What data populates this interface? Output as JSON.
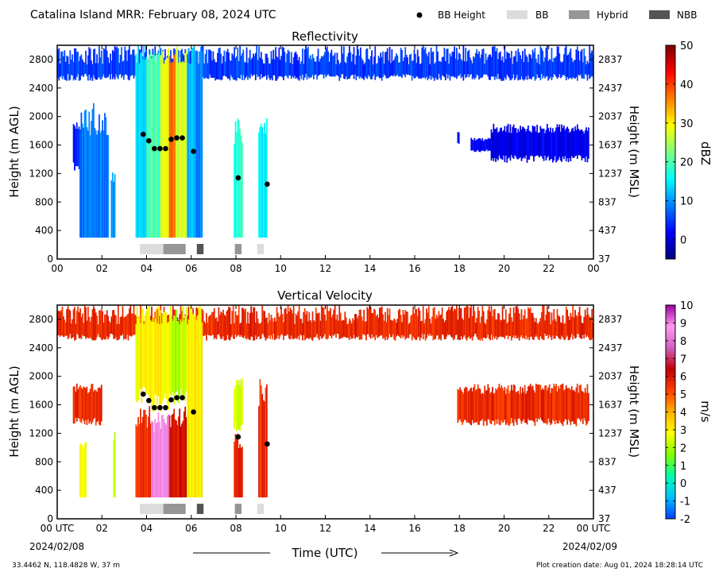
{
  "header": {
    "title": "Catalina Island MRR:  February 08, 2024 UTC",
    "legend": [
      {
        "label": "BB Height",
        "kind": "dot",
        "color": "#000000"
      },
      {
        "label": "BB",
        "kind": "swatch",
        "color": "#dcdcdc"
      },
      {
        "label": "Hybrid",
        "kind": "swatch",
        "color": "#969696"
      },
      {
        "label": "NBB",
        "kind": "swatch",
        "color": "#555555"
      }
    ]
  },
  "footer": {
    "location": "33.4462 N, 118.4828 W, 37 m",
    "creation": "Plot creation date: Aug 01, 2024 18:28:14 UTC",
    "xlabel": "Time (UTC)",
    "start_label": "00 UTC",
    "start_date": "2024/02/08",
    "end_label": "00 UTC",
    "end_date": "2024/02/09"
  },
  "chart_data": [
    {
      "type": "heatmap",
      "title": "Reflectivity",
      "ylabel": "Height (m AGL)",
      "ylabel_right": "Height (m MSL)",
      "xlim": [
        0,
        24
      ],
      "ylim": [
        0,
        3000
      ],
      "xticks": [
        "00",
        "02",
        "04",
        "06",
        "08",
        "10",
        "12",
        "14",
        "16",
        "18",
        "20",
        "22",
        "00"
      ],
      "yticks": [
        0,
        400,
        800,
        1200,
        1600,
        2000,
        2400,
        2800
      ],
      "yticks_right": [
        "37",
        "437",
        "837",
        "1237",
        "1637",
        "2037",
        "2437",
        "2837"
      ],
      "colorbar": {
        "label": "dBZ",
        "min": -5,
        "max": 50,
        "ticks": [
          0,
          10,
          20,
          30,
          40,
          50
        ],
        "stops": [
          "#00007f",
          "#0000ff",
          "#007fff",
          "#00ffff",
          "#7fff7f",
          "#ffff00",
          "#ff7f00",
          "#ff0000",
          "#7f0000"
        ]
      },
      "bb_height": [
        [
          3.85,
          1750
        ],
        [
          4.1,
          1660
        ],
        [
          4.35,
          1550
        ],
        [
          4.6,
          1550
        ],
        [
          4.85,
          1550
        ],
        [
          5.1,
          1680
        ],
        [
          5.35,
          1700
        ],
        [
          5.6,
          1700
        ],
        [
          6.1,
          1510
        ],
        [
          8.1,
          1140
        ],
        [
          9.4,
          1050
        ]
      ],
      "bb_class": [
        {
          "start": 3.7,
          "end": 4.75,
          "class": "BB"
        },
        {
          "start": 4.75,
          "end": 5.75,
          "class": "Hybrid"
        },
        {
          "start": 6.25,
          "end": 6.55,
          "class": "NBB"
        },
        {
          "start": 7.95,
          "end": 8.25,
          "class": "Hybrid"
        },
        {
          "start": 8.95,
          "end": 9.25,
          "class": "BB"
        }
      ],
      "regions": [
        {
          "t0": 0,
          "t1": 24,
          "h0": 2500,
          "h1": 3000,
          "v": 5
        },
        {
          "t0": 0.7,
          "t1": 1.1,
          "h0": 1200,
          "h1": 2000,
          "v": 3
        },
        {
          "t0": 1.0,
          "t1": 2.3,
          "h0": 300,
          "h1": 2200,
          "v": 8
        },
        {
          "t0": 2.4,
          "t1": 2.6,
          "h0": 300,
          "h1": 1300,
          "v": 10
        },
        {
          "t0": 3.5,
          "t1": 4.0,
          "h0": 300,
          "h1": 3000,
          "v": 14
        },
        {
          "t0": 4.0,
          "t1": 4.6,
          "h0": 300,
          "h1": 3000,
          "v": 20
        },
        {
          "t0": 4.6,
          "t1": 5.0,
          "h0": 300,
          "h1": 3000,
          "v": 28
        },
        {
          "t0": 5.0,
          "t1": 5.3,
          "h0": 300,
          "h1": 3000,
          "v": 38
        },
        {
          "t0": 5.3,
          "t1": 5.8,
          "h0": 300,
          "h1": 3000,
          "v": 27
        },
        {
          "t0": 5.8,
          "t1": 6.2,
          "h0": 300,
          "h1": 3000,
          "v": 12
        },
        {
          "t0": 6.2,
          "t1": 6.5,
          "h0": 300,
          "h1": 3000,
          "v": 9
        },
        {
          "t0": 7.9,
          "t1": 8.3,
          "h0": 300,
          "h1": 2000,
          "v": 18
        },
        {
          "t0": 9.0,
          "t1": 9.4,
          "h0": 300,
          "h1": 2000,
          "v": 15
        },
        {
          "t0": 17.9,
          "t1": 18.0,
          "h0": 1600,
          "h1": 1800,
          "v": 3
        },
        {
          "t0": 18.5,
          "t1": 19.4,
          "h0": 1500,
          "h1": 1700,
          "v": 1
        },
        {
          "t0": 19.4,
          "t1": 23.8,
          "h0": 1350,
          "h1": 1900,
          "v": 1
        }
      ]
    },
    {
      "type": "heatmap",
      "title": "Vertical Velocity",
      "ylabel": "Height (m AGL)",
      "ylabel_right": "Height (m MSL)",
      "xlim": [
        0,
        24
      ],
      "ylim": [
        0,
        3000
      ],
      "xticks": [
        "00 UTC",
        "02",
        "04",
        "06",
        "08",
        "10",
        "12",
        "14",
        "16",
        "18",
        "20",
        "22",
        "00 UTC"
      ],
      "yticks": [
        0,
        400,
        800,
        1200,
        1600,
        2000,
        2400,
        2800
      ],
      "yticks_right": [
        "37",
        "437",
        "837",
        "1237",
        "1637",
        "2037",
        "2437",
        "2837"
      ],
      "colorbar": {
        "label": "m/s",
        "min": -2,
        "max": 10,
        "ticks": [
          -2,
          -1,
          0,
          1,
          2,
          3,
          4,
          5,
          6,
          7,
          8,
          9,
          10
        ],
        "stops": [
          "#0040ff",
          "#00c0ff",
          "#00ffaa",
          "#7fff00",
          "#ffff00",
          "#ffb000",
          "#ff4000",
          "#c00000",
          "#d060c0",
          "#ff99ee",
          "#a000a0"
        ]
      },
      "bb_height": [
        [
          3.85,
          1750
        ],
        [
          4.1,
          1660
        ],
        [
          4.35,
          1560
        ],
        [
          4.6,
          1560
        ],
        [
          4.85,
          1560
        ],
        [
          5.1,
          1670
        ],
        [
          5.35,
          1700
        ],
        [
          5.6,
          1700
        ],
        [
          6.1,
          1500
        ],
        [
          8.1,
          1150
        ],
        [
          9.4,
          1050
        ]
      ],
      "bb_class": [
        {
          "start": 3.7,
          "end": 4.75,
          "class": "BB"
        },
        {
          "start": 4.75,
          "end": 5.75,
          "class": "Hybrid"
        },
        {
          "start": 6.25,
          "end": 6.55,
          "class": "NBB"
        },
        {
          "start": 7.95,
          "end": 8.25,
          "class": "Hybrid"
        },
        {
          "start": 8.95,
          "end": 9.25,
          "class": "BB"
        }
      ],
      "regions": [
        {
          "t0": 0,
          "t1": 24,
          "h0": 2500,
          "h1": 3000,
          "v": 5.6
        },
        {
          "t0": 0.7,
          "t1": 2.0,
          "h0": 1300,
          "h1": 1900,
          "v": 5.6
        },
        {
          "t0": 1.0,
          "t1": 1.3,
          "h0": 300,
          "h1": 1200,
          "v": 2.5
        },
        {
          "t0": 2.5,
          "t1": 2.6,
          "h0": 300,
          "h1": 1300,
          "v": 2.5
        },
        {
          "t0": 3.5,
          "t1": 4.2,
          "h0": 300,
          "h1": 1600,
          "v": 5.5
        },
        {
          "t0": 3.5,
          "t1": 4.2,
          "h0": 1600,
          "h1": 3000,
          "v": 3
        },
        {
          "t0": 4.2,
          "t1": 5.0,
          "h0": 300,
          "h1": 1500,
          "v": 8.5
        },
        {
          "t0": 4.2,
          "t1": 5.0,
          "h0": 1500,
          "h1": 3000,
          "v": 3
        },
        {
          "t0": 5.0,
          "t1": 5.8,
          "h0": 300,
          "h1": 1600,
          "v": 6
        },
        {
          "t0": 5.0,
          "t1": 5.8,
          "h0": 1600,
          "h1": 3000,
          "v": 2
        },
        {
          "t0": 5.8,
          "t1": 6.5,
          "h0": 300,
          "h1": 3000,
          "v": 3
        },
        {
          "t0": 7.9,
          "t1": 8.3,
          "h0": 300,
          "h1": 1200,
          "v": 5.8
        },
        {
          "t0": 7.9,
          "t1": 8.3,
          "h0": 1200,
          "h1": 2000,
          "v": 2.5
        },
        {
          "t0": 9.0,
          "t1": 9.4,
          "h0": 300,
          "h1": 2000,
          "v": 5.5
        },
        {
          "t0": 17.9,
          "t1": 23.8,
          "h0": 1300,
          "h1": 1900,
          "v": 5.6
        }
      ]
    }
  ]
}
